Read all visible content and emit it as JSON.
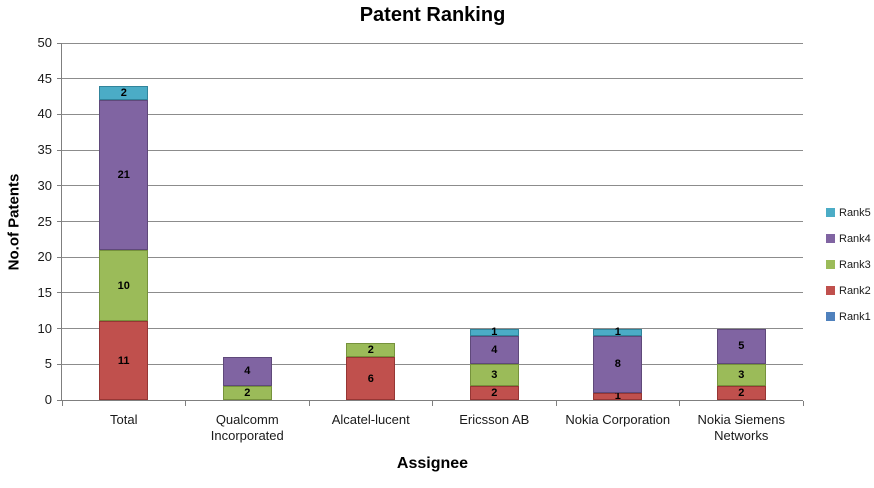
{
  "chart_data": {
    "type": "bar",
    "stacked": true,
    "title": "Patent Ranking",
    "xlabel": "Assignee",
    "ylabel": "No.of Patents",
    "ylim": [
      0,
      50
    ],
    "yticks": [
      0,
      5,
      10,
      15,
      20,
      25,
      30,
      35,
      40,
      45,
      50
    ],
    "grid": true,
    "show_data_labels": true,
    "legend_position": "right",
    "categories": [
      "Total",
      "Qualcomm Incorporated",
      "Alcatel-lucent",
      "Ericsson AB",
      "Nokia Corporation",
      "Nokia Siemens Networks"
    ],
    "series": [
      {
        "name": "Rank1",
        "color": "#4F81BD",
        "border_color": "#38filtered",
        "values": [
          0,
          0,
          0,
          0,
          0,
          0
        ]
      },
      {
        "name": "Rank2",
        "color": "#C0504D",
        "border_color": "#963634",
        "values": [
          11,
          0,
          6,
          2,
          1,
          2
        ]
      },
      {
        "name": "Rank3",
        "color": "#9BBB59",
        "border_color": "#76923C",
        "values": [
          10,
          2,
          2,
          3,
          0,
          3
        ]
      },
      {
        "name": "Rank4",
        "color": "#8064A2",
        "border_color": "#5F497A",
        "values": [
          21,
          4,
          0,
          4,
          8,
          5
        ]
      },
      {
        "name": "Rank5",
        "color": "#4BACC6",
        "border_color": "#31849B",
        "values": [
          2,
          0,
          0,
          1,
          1,
          0
        ]
      }
    ],
    "legend_order": [
      "Rank5",
      "Rank4",
      "Rank3",
      "Rank2",
      "Rank1"
    ],
    "gridline_color": "#8C8C8C",
    "axis_color": "#7F7F7F"
  }
}
